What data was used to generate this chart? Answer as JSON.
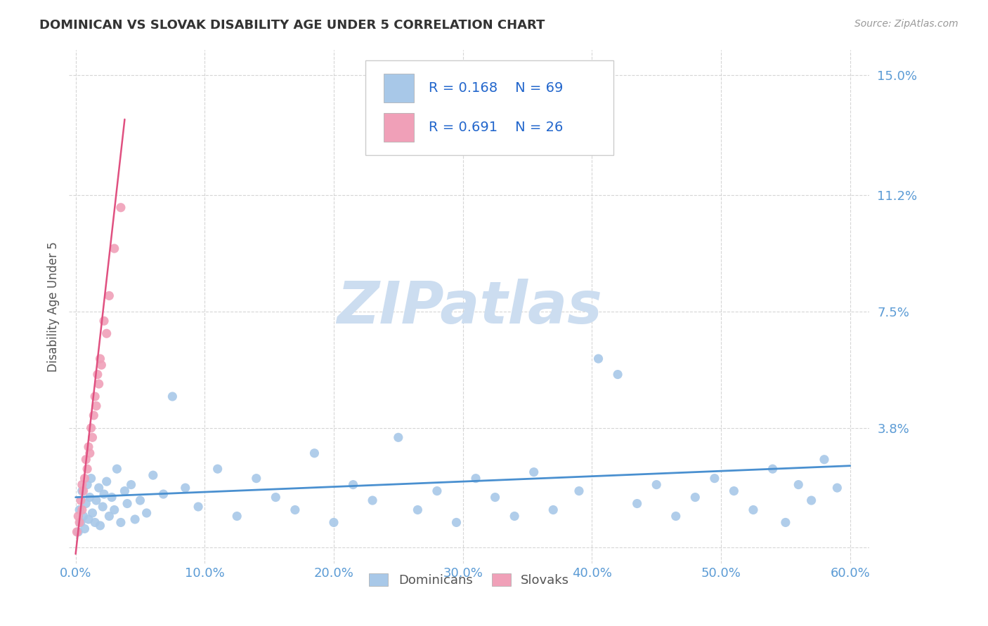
{
  "title": "DOMINICAN VS SLOVAK DISABILITY AGE UNDER 5 CORRELATION CHART",
  "source": "Source: ZipAtlas.com",
  "ylabel": "Disability Age Under 5",
  "xlim": [
    -0.005,
    0.615
  ],
  "ylim": [
    -0.005,
    0.158
  ],
  "yticks": [
    0.0,
    0.038,
    0.075,
    0.112,
    0.15
  ],
  "ytick_labels": [
    "",
    "3.8%",
    "7.5%",
    "11.2%",
    "15.0%"
  ],
  "xtick_labels": [
    "0.0%",
    "10.0%",
    "20.0%",
    "30.0%",
    "40.0%",
    "50.0%",
    "60.0%"
  ],
  "xticks": [
    0.0,
    0.1,
    0.2,
    0.3,
    0.4,
    0.5,
    0.6
  ],
  "dominican_color": "#a8c8e8",
  "slovak_color": "#f0a0b8",
  "dominican_line_color": "#4a90d0",
  "slovak_line_color": "#e05080",
  "legend_R1": "0.168",
  "legend_N1": "69",
  "legend_R2": "0.691",
  "legend_N2": "26",
  "legend_label1": "Dominicans",
  "legend_label2": "Slovaks",
  "title_color": "#333333",
  "tick_color": "#5b9bd5",
  "grid_color": "#cccccc",
  "watermark_text": "ZIPatlas",
  "watermark_color": "#ccddf0",
  "background_color": "#ffffff",
  "dom_x": [
    0.002,
    0.003,
    0.004,
    0.005,
    0.006,
    0.007,
    0.008,
    0.009,
    0.01,
    0.011,
    0.012,
    0.013,
    0.015,
    0.016,
    0.018,
    0.019,
    0.021,
    0.022,
    0.024,
    0.026,
    0.028,
    0.03,
    0.032,
    0.035,
    0.038,
    0.04,
    0.043,
    0.046,
    0.05,
    0.055,
    0.06,
    0.068,
    0.075,
    0.085,
    0.095,
    0.11,
    0.125,
    0.14,
    0.155,
    0.17,
    0.185,
    0.2,
    0.215,
    0.23,
    0.25,
    0.265,
    0.28,
    0.295,
    0.31,
    0.325,
    0.34,
    0.355,
    0.37,
    0.39,
    0.405,
    0.42,
    0.435,
    0.45,
    0.465,
    0.48,
    0.495,
    0.51,
    0.525,
    0.54,
    0.55,
    0.56,
    0.57,
    0.58,
    0.59
  ],
  "dom_y": [
    0.005,
    0.012,
    0.008,
    0.018,
    0.01,
    0.006,
    0.014,
    0.02,
    0.009,
    0.016,
    0.022,
    0.011,
    0.008,
    0.015,
    0.019,
    0.007,
    0.013,
    0.017,
    0.021,
    0.01,
    0.016,
    0.012,
    0.025,
    0.008,
    0.018,
    0.014,
    0.02,
    0.009,
    0.015,
    0.011,
    0.023,
    0.017,
    0.048,
    0.019,
    0.013,
    0.025,
    0.01,
    0.022,
    0.016,
    0.012,
    0.03,
    0.008,
    0.02,
    0.015,
    0.035,
    0.012,
    0.018,
    0.008,
    0.022,
    0.016,
    0.01,
    0.024,
    0.012,
    0.018,
    0.06,
    0.055,
    0.014,
    0.02,
    0.01,
    0.016,
    0.022,
    0.018,
    0.012,
    0.025,
    0.008,
    0.02,
    0.015,
    0.028,
    0.019
  ],
  "slo_x": [
    0.001,
    0.002,
    0.003,
    0.004,
    0.005,
    0.005,
    0.006,
    0.007,
    0.008,
    0.009,
    0.01,
    0.011,
    0.012,
    0.013,
    0.014,
    0.015,
    0.016,
    0.017,
    0.018,
    0.019,
    0.02,
    0.022,
    0.024,
    0.026,
    0.03,
    0.035
  ],
  "slo_y": [
    0.005,
    0.01,
    0.008,
    0.015,
    0.012,
    0.02,
    0.018,
    0.022,
    0.028,
    0.025,
    0.032,
    0.03,
    0.038,
    0.035,
    0.042,
    0.048,
    0.045,
    0.055,
    0.052,
    0.06,
    0.058,
    0.072,
    0.068,
    0.08,
    0.095,
    0.108
  ],
  "slo_line_x0": 0.0,
  "slo_line_y0": -0.002,
  "slo_line_x1": 0.038,
  "slo_line_y1": 0.136,
  "dom_line_x0": 0.0,
  "dom_line_y0": 0.016,
  "dom_line_x1": 0.6,
  "dom_line_y1": 0.026
}
